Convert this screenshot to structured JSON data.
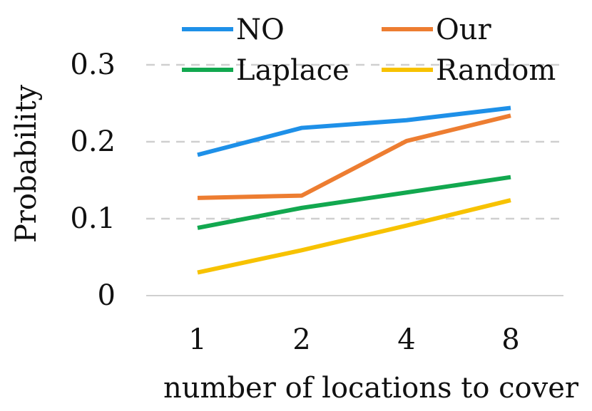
{
  "chart_data": {
    "type": "line",
    "categories": [
      "1",
      "2",
      "4",
      "8"
    ],
    "series": [
      {
        "name": "NO",
        "color": "#1E90E8",
        "values": [
          0.183,
          0.218,
          0.228,
          0.244
        ]
      },
      {
        "name": "Our",
        "color": "#ED7D31",
        "values": [
          0.127,
          0.13,
          0.201,
          0.234
        ]
      },
      {
        "name": "Laplace",
        "color": "#12A84F",
        "values": [
          0.088,
          0.114,
          0.134,
          0.154
        ]
      },
      {
        "name": "Random",
        "color": "#F7C200",
        "values": [
          0.03,
          0.059,
          0.091,
          0.124
        ]
      }
    ],
    "xlabel": "number of locations to cover",
    "ylabel": "Probability",
    "ylim": [
      0,
      0.3
    ],
    "yticks": [
      0,
      0.1,
      0.2,
      0.3
    ],
    "ytick_labels": [
      "0",
      "0.1",
      "0.2",
      "0.3"
    ],
    "grid": true,
    "legend": "top"
  }
}
